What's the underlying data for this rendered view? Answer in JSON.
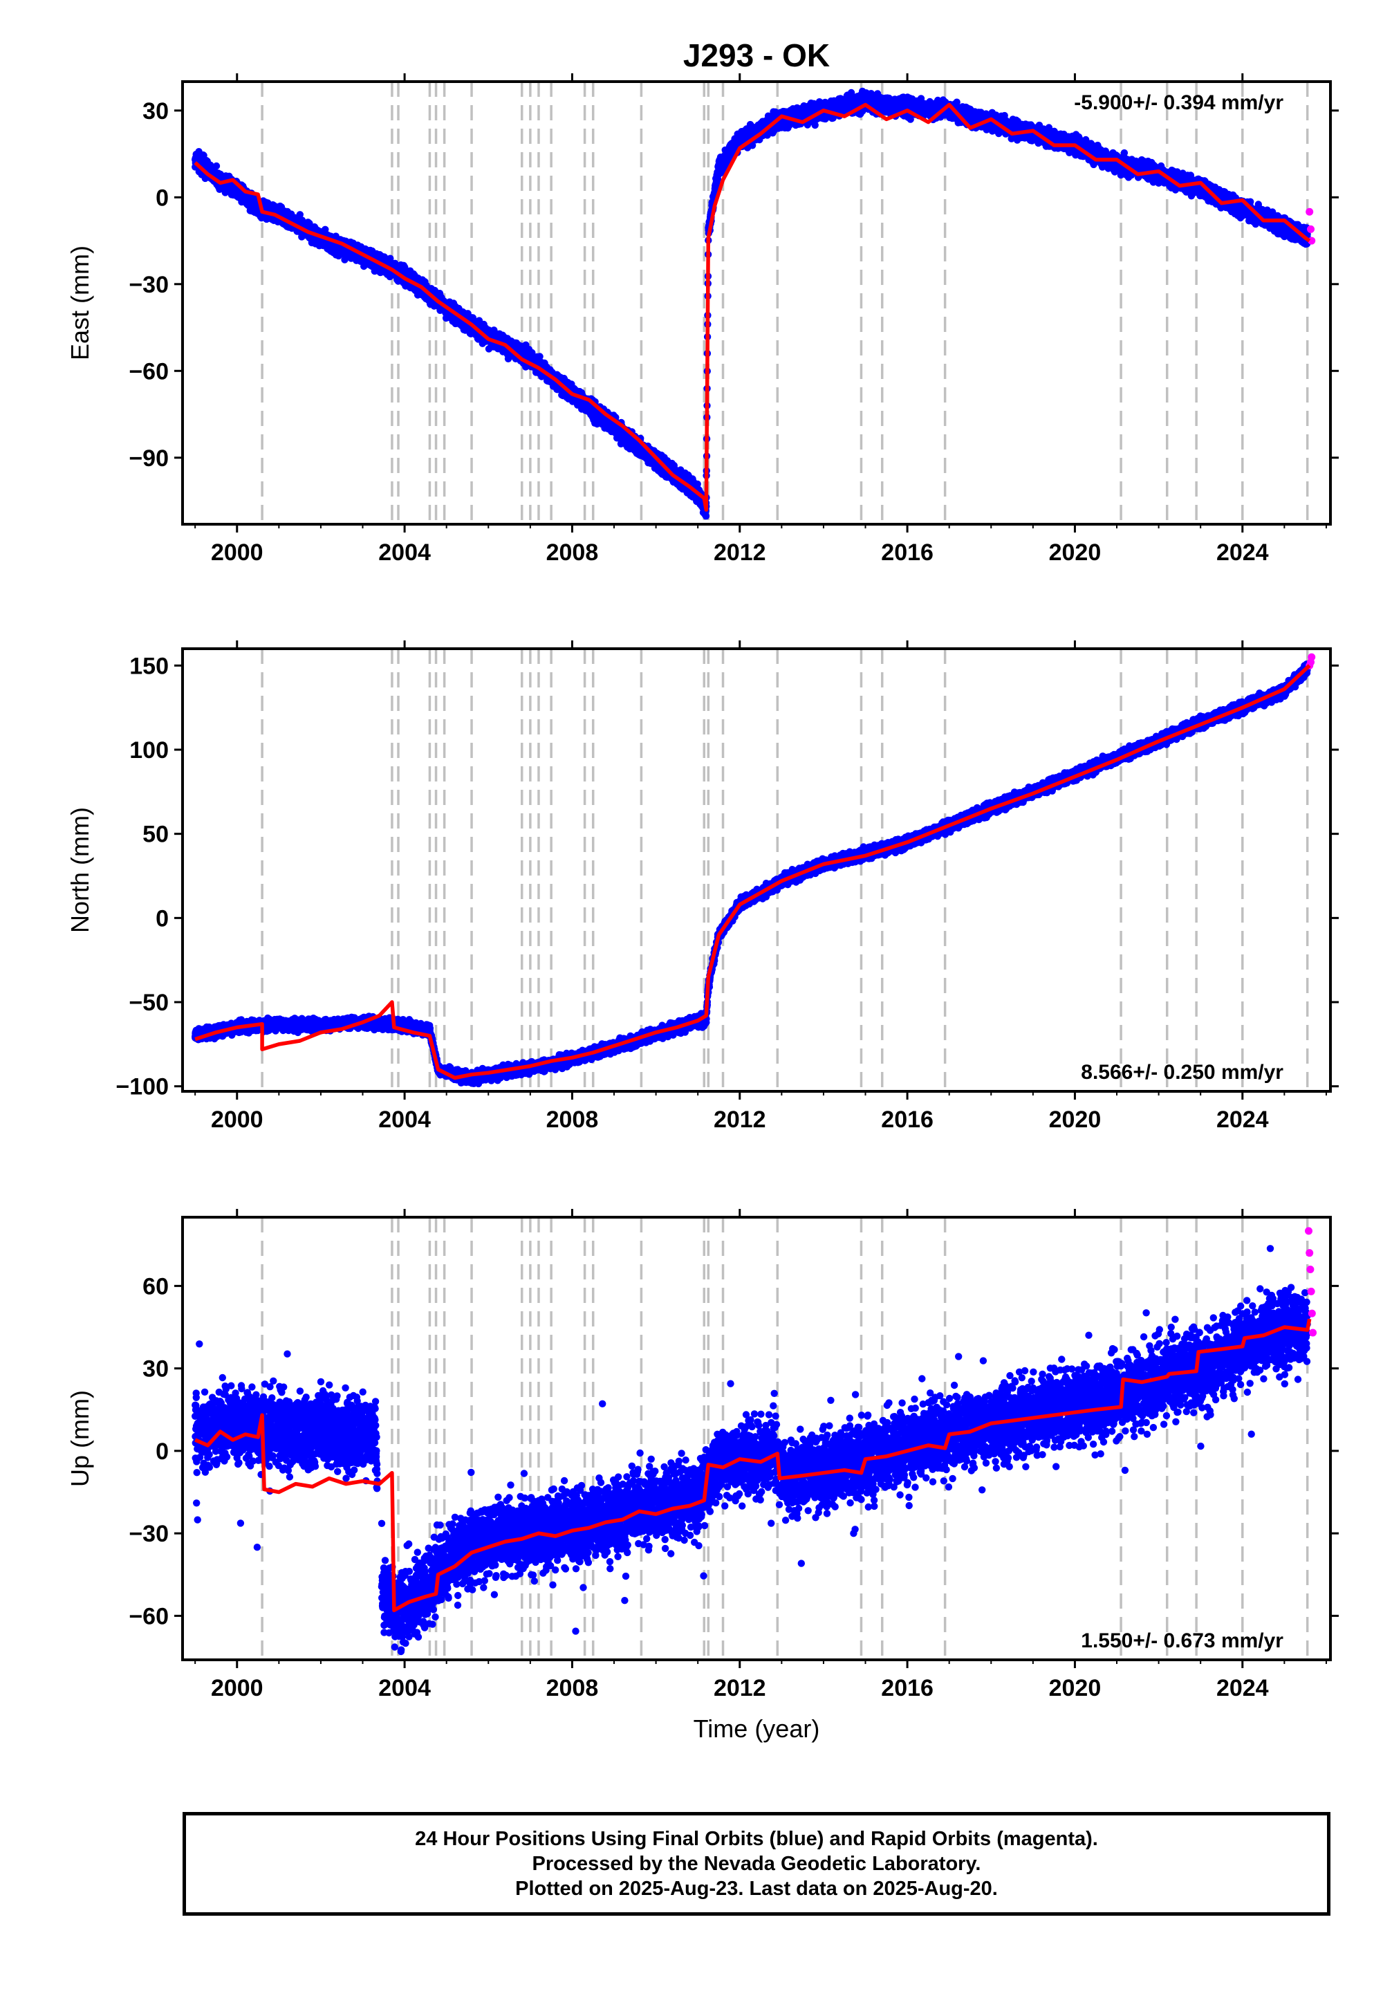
{
  "title": "J293 - OK",
  "xlabel": "Time (year)",
  "colors": {
    "final": "#0000ff",
    "rapid": "#ff00ff",
    "model": "#ff0000",
    "events": "#c0c0c0",
    "axes": "#000000"
  },
  "caption": {
    "line1": "24 Hour Positions Using Final Orbits (blue) and Rapid Orbits (magenta).",
    "line2": "Processed by the Nevada Geodetic Laboratory.",
    "line3": "Plotted on 2025-Aug-23. Last data on 2025-Aug-20."
  },
  "chart_data": [
    {
      "type": "scatter",
      "ylabel": "East (mm)",
      "rate_label": "-5.900+/- 0.394 mm/yr",
      "rate_position": "top-right",
      "xlim": [
        1998.7,
        2026.1
      ],
      "ylim": [
        -113,
        40
      ],
      "xticks": [
        2000,
        2004,
        2008,
        2012,
        2016,
        2020,
        2024
      ],
      "yticks": [
        30,
        0,
        -30,
        -60,
        -90
      ],
      "ytick_labels": [
        "30",
        "0",
        "−30",
        "−60",
        "−90"
      ],
      "grid": false,
      "event_lines": [
        2000.6,
        2003.7,
        2003.85,
        2004.6,
        2004.75,
        2004.95,
        2005.6,
        2006.8,
        2007.0,
        2007.2,
        2007.5,
        2008.3,
        2008.5,
        2009.65,
        2011.15,
        2011.25,
        2011.6,
        2012.9,
        2014.9,
        2015.4,
        2016.9,
        2021.1,
        2022.2,
        2022.9,
        2024.0,
        2025.55
      ],
      "series": [
        {
          "role": "final",
          "x": [
            1999.0,
            1999.5,
            2000.0,
            2000.5,
            2001.0,
            2002.0,
            2003.0,
            2004.0,
            2004.9,
            2006.0,
            2007.0,
            2008.0,
            2009.0,
            2010.0,
            2011.0,
            2011.2,
            2011.25,
            2011.5,
            2012.0,
            2013.0,
            2014.0,
            2015.0,
            2016.0,
            2017.0,
            2018.0,
            2019.0,
            2020.0,
            2021.0,
            2022.0,
            2023.0,
            2024.0,
            2025.0,
            2025.55
          ],
          "y": [
            13,
            7,
            3,
            -4,
            -6,
            -14,
            -20,
            -27,
            -37,
            -48,
            -56,
            -68,
            -79,
            -91,
            -102,
            -108,
            -12,
            10,
            20,
            27,
            30,
            33,
            31,
            30,
            26,
            22,
            18,
            12,
            8,
            3,
            -4,
            -10,
            -14
          ]
        },
        {
          "role": "rapid",
          "x": [
            2025.6,
            2025.63,
            2025.65
          ],
          "y": [
            -5,
            -11,
            -15
          ]
        },
        {
          "role": "model",
          "x": [
            1999.0,
            1999.3,
            1999.6,
            1999.9,
            2000.2,
            2000.5,
            2000.6,
            2000.9,
            2001.3,
            2001.7,
            2002.1,
            2002.5,
            2002.9,
            2003.3,
            2003.7,
            2004.0,
            2004.4,
            2004.8,
            2005.2,
            2005.6,
            2006.0,
            2006.4,
            2006.8,
            2007.2,
            2007.6,
            2008.0,
            2008.4,
            2008.8,
            2009.2,
            2009.6,
            2010.0,
            2010.4,
            2010.8,
            2011.15,
            2011.2,
            2011.25,
            2011.4,
            2011.6,
            2012.0,
            2012.5,
            2013.0,
            2013.5,
            2014.0,
            2014.5,
            2015.0,
            2015.5,
            2016.0,
            2016.5,
            2017.0,
            2017.5,
            2018.0,
            2018.5,
            2019.0,
            2019.5,
            2020.0,
            2020.5,
            2021.0,
            2021.5,
            2022.0,
            2022.5,
            2023.0,
            2023.5,
            2024.0,
            2024.5,
            2025.0,
            2025.5,
            2025.6
          ],
          "y": [
            12,
            8,
            5,
            6,
            2,
            1,
            -5,
            -6,
            -9,
            -12,
            -14,
            -16,
            -19,
            -22,
            -25,
            -28,
            -31,
            -36,
            -40,
            -44,
            -49,
            -51,
            -56,
            -59,
            -63,
            -68,
            -70,
            -75,
            -79,
            -84,
            -90,
            -96,
            -100,
            -104,
            -108,
            -14,
            -3,
            6,
            17,
            22,
            28,
            26,
            30,
            28,
            32,
            27,
            30,
            26,
            32,
            24,
            27,
            22,
            23,
            18,
            18,
            13,
            13,
            8,
            9,
            4,
            5,
            -2,
            -1,
            -8,
            -8,
            -14,
            -15
          ]
        }
      ]
    },
    {
      "type": "scatter",
      "ylabel": "North (mm)",
      "rate_label": "8.566+/- 0.250 mm/yr",
      "rate_position": "bottom-right",
      "xlim": [
        1998.7,
        2026.1
      ],
      "ylim": [
        -103,
        160
      ],
      "xticks": [
        2000,
        2004,
        2008,
        2012,
        2016,
        2020,
        2024
      ],
      "yticks": [
        150,
        100,
        50,
        0,
        -50,
        -100
      ],
      "ytick_labels": [
        "150",
        "100",
        "50",
        "0",
        "−50",
        "−100"
      ],
      "grid": false,
      "event_lines": [
        2000.6,
        2003.7,
        2003.85,
        2004.6,
        2004.75,
        2004.95,
        2005.6,
        2006.8,
        2007.0,
        2007.2,
        2007.5,
        2008.3,
        2008.5,
        2009.65,
        2011.15,
        2011.25,
        2011.6,
        2012.9,
        2014.9,
        2015.4,
        2016.9,
        2021.1,
        2022.2,
        2022.9,
        2024.0,
        2025.55
      ],
      "series": [
        {
          "role": "final",
          "x": [
            1999.0,
            2000.0,
            2001.0,
            2002.0,
            2003.0,
            2004.0,
            2004.6,
            2004.8,
            2005.5,
            2006.5,
            2007.5,
            2008.5,
            2009.5,
            2010.5,
            2011.2,
            2011.25,
            2011.5,
            2012.0,
            2013.0,
            2014.0,
            2015.0,
            2016.0,
            2017.0,
            2018.0,
            2019.0,
            2020.0,
            2021.0,
            2022.0,
            2023.0,
            2024.0,
            2025.0,
            2025.55
          ],
          "y": [
            -70,
            -65,
            -63,
            -64,
            -62,
            -64,
            -67,
            -90,
            -95,
            -91,
            -87,
            -80,
            -73,
            -65,
            -60,
            -40,
            -10,
            8,
            22,
            32,
            38,
            45,
            55,
            65,
            75,
            85,
            95,
            105,
            116,
            125,
            135,
            148
          ]
        },
        {
          "role": "rapid",
          "x": [
            2025.6,
            2025.63,
            2025.65
          ],
          "y": [
            150,
            152,
            155
          ]
        },
        {
          "role": "model",
          "x": [
            1999.0,
            1999.5,
            2000.0,
            2000.6,
            2000.6,
            2001.0,
            2001.5,
            2002.0,
            2002.5,
            2003.0,
            2003.4,
            2003.7,
            2003.75,
            2004.2,
            2004.6,
            2004.8,
            2005.2,
            2005.6,
            2006.0,
            2006.5,
            2007.0,
            2007.5,
            2008.0,
            2008.5,
            2009.0,
            2009.5,
            2010.0,
            2010.5,
            2011.0,
            2011.2,
            2011.25,
            2011.5,
            2012.0,
            2012.5,
            2013.0,
            2014.0,
            2015.0,
            2016.0,
            2017.0,
            2018.0,
            2019.0,
            2020.0,
            2021.0,
            2022.0,
            2023.0,
            2024.0,
            2025.0,
            2025.6
          ],
          "y": [
            -72,
            -68,
            -65,
            -63,
            -78,
            -75,
            -73,
            -68,
            -66,
            -62,
            -58,
            -50,
            -65,
            -68,
            -70,
            -90,
            -95,
            -93,
            -92,
            -90,
            -88,
            -85,
            -83,
            -80,
            -76,
            -72,
            -68,
            -65,
            -61,
            -58,
            -35,
            -10,
            8,
            15,
            22,
            32,
            37,
            45,
            55,
            65,
            74,
            84,
            94,
            105,
            115,
            125,
            136,
            150
          ]
        }
      ]
    },
    {
      "type": "scatter",
      "ylabel": "Up (mm)",
      "rate_label": "1.550+/- 0.673 mm/yr",
      "rate_position": "bottom-right",
      "xlim": [
        1998.7,
        2026.1
      ],
      "ylim": [
        -76,
        85
      ],
      "xticks": [
        2000,
        2004,
        2008,
        2012,
        2016,
        2020,
        2024
      ],
      "yticks": [
        60,
        30,
        0,
        -30,
        -60
      ],
      "ytick_labels": [
        "60",
        "30",
        "0",
        "−30",
        "−60"
      ],
      "grid": false,
      "event_lines": [
        2000.6,
        2003.7,
        2003.85,
        2004.6,
        2004.75,
        2004.95,
        2005.6,
        2006.8,
        2007.0,
        2007.2,
        2007.5,
        2008.3,
        2008.5,
        2009.65,
        2011.15,
        2011.25,
        2011.6,
        2012.9,
        2014.9,
        2015.4,
        2016.9,
        2021.1,
        2022.2,
        2022.9,
        2024.0,
        2025.55
      ],
      "series": [
        {
          "role": "final",
          "x": [
            1999.0,
            1999.5,
            2000.0,
            2000.5,
            2001.0,
            2001.5,
            2002.0,
            2002.5,
            2003.0,
            2003.3,
            2003.5,
            2004.0,
            2004.5,
            2005.0,
            2005.5,
            2006.0,
            2007.0,
            2008.0,
            2009.0,
            2010.0,
            2011.0,
            2011.5,
            2012.0,
            2012.9,
            2013.0,
            2014.0,
            2015.0,
            2016.0,
            2017.0,
            2018.0,
            2019.0,
            2020.0,
            2021.0,
            2022.0,
            2023.0,
            2024.0,
            2025.0,
            2025.55
          ],
          "y": [
            5,
            8,
            10,
            7,
            9,
            6,
            8,
            4,
            7,
            5,
            -55,
            -57,
            -52,
            -40,
            -35,
            -33,
            -30,
            -27,
            -24,
            -20,
            -17,
            -5,
            -3,
            -1,
            -10,
            -7,
            -3,
            2,
            6,
            10,
            13,
            16,
            20,
            25,
            30,
            38,
            45,
            45
          ]
        },
        {
          "role": "rapid",
          "x": [
            2025.58,
            2025.6,
            2025.62,
            2025.64,
            2025.66,
            2025.68
          ],
          "y": [
            80,
            72,
            66,
            58,
            50,
            43
          ]
        },
        {
          "role": "model",
          "x": [
            1999.0,
            1999.3,
            1999.6,
            1999.9,
            2000.2,
            2000.5,
            2000.6,
            2000.65,
            2001.0,
            2001.4,
            2001.8,
            2002.2,
            2002.6,
            2003.0,
            2003.4,
            2003.7,
            2003.75,
            2004.1,
            2004.5,
            2004.75,
            2004.8,
            2005.2,
            2005.6,
            2006.0,
            2006.4,
            2006.8,
            2007.2,
            2007.6,
            2008.0,
            2008.4,
            2008.8,
            2009.2,
            2009.6,
            2010.0,
            2010.4,
            2010.8,
            2011.15,
            2011.25,
            2011.6,
            2012.0,
            2012.5,
            2012.9,
            2012.95,
            2013.5,
            2014.0,
            2014.5,
            2014.9,
            2015.0,
            2015.5,
            2016.0,
            2016.5,
            2016.9,
            2017.0,
            2017.5,
            2018.0,
            2018.5,
            2019.0,
            2019.5,
            2020.0,
            2020.5,
            2021.1,
            2021.15,
            2021.6,
            2022.2,
            2022.25,
            2022.9,
            2022.95,
            2023.5,
            2024.0,
            2024.05,
            2024.5,
            2025.0,
            2025.55,
            2025.6
          ],
          "y": [
            4,
            2,
            7,
            4,
            6,
            5,
            13,
            -14,
            -15,
            -12,
            -13,
            -10,
            -12,
            -11,
            -12,
            -8,
            -58,
            -55,
            -53,
            -52,
            -45,
            -42,
            -37,
            -35,
            -33,
            -32,
            -30,
            -31,
            -29,
            -28,
            -26,
            -25,
            -22,
            -23,
            -21,
            -20,
            -18,
            -5,
            -6,
            -3,
            -4,
            -1,
            -10,
            -9,
            -8,
            -7,
            -8,
            -3,
            -2,
            0,
            2,
            1,
            6,
            7,
            10,
            11,
            12,
            13,
            14,
            15,
            16,
            26,
            25,
            27,
            28,
            29,
            36,
            37,
            38,
            41,
            42,
            45,
            44,
            48
          ]
        }
      ]
    }
  ]
}
